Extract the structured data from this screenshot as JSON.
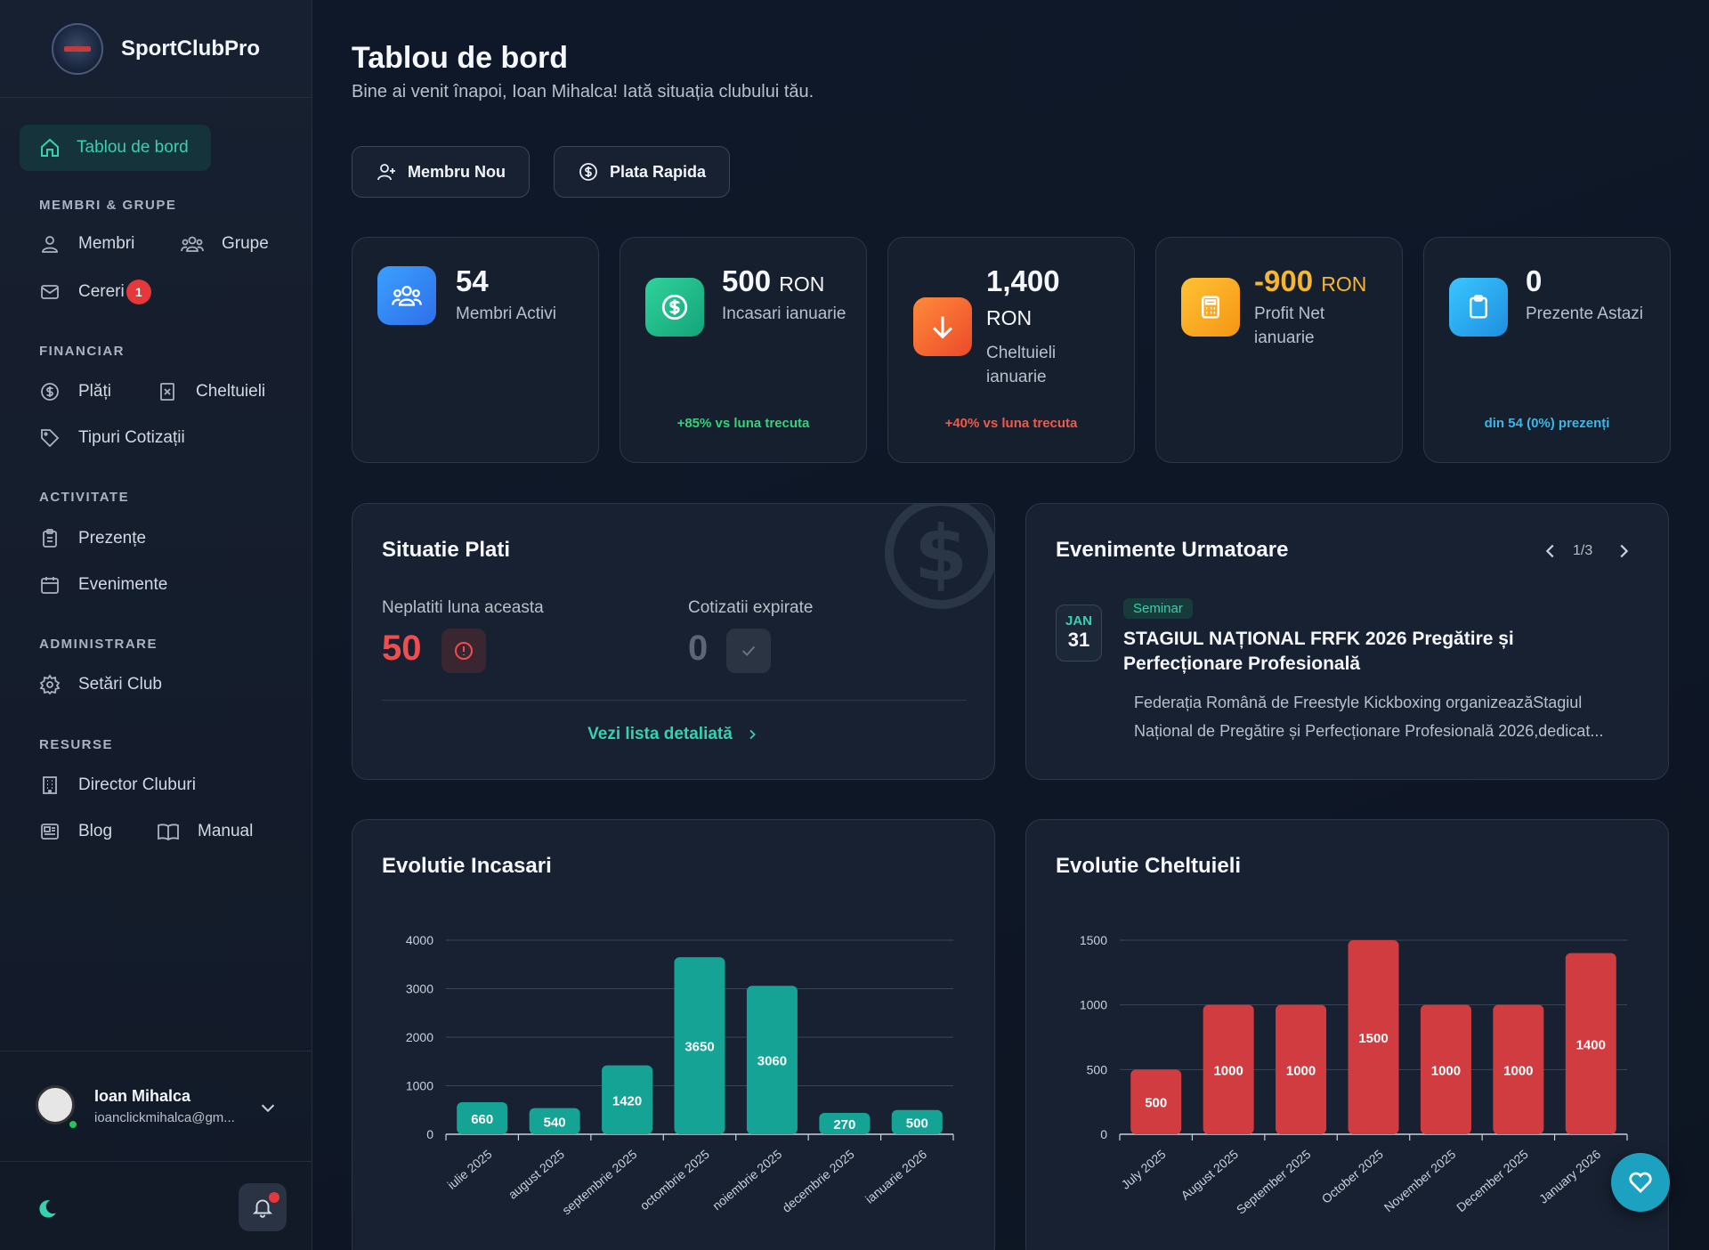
{
  "app": {
    "name": "SportClubPro"
  },
  "sidebar": {
    "active": "Tablou de bord",
    "sections": {
      "members": "MEMBRI & GRUPE",
      "financial": "FINANCIAR",
      "activity": "ACTIVITATE",
      "admin": "ADMINISTRARE",
      "resources": "RESURSE"
    },
    "items": {
      "membri": "Membri",
      "grupe": "Grupe",
      "cereri": "Cereri",
      "cereri_badge": "1",
      "plati": "Plăți",
      "cheltuieli": "Cheltuieli",
      "tipuri": "Tipuri Cotizații",
      "prezente": "Prezențe",
      "evenimente": "Evenimente",
      "setari": "Setări Club",
      "director": "Director Cluburi",
      "blog": "Blog",
      "manual": "Manual"
    },
    "user": {
      "name": "Ioan Mihalca",
      "email": "ioanclickmihalca@gm..."
    }
  },
  "header": {
    "title": "Tablou de bord",
    "subtitle": "Bine ai venit înapoi, Ioan Mihalca! Iată situația clubului tău."
  },
  "actions": {
    "new_member": "Membru Nou",
    "quick_pay": "Plata Rapida"
  },
  "stats": [
    {
      "value": "54",
      "unit": "",
      "label": "Membri Activi",
      "foot": ""
    },
    {
      "value": "500",
      "unit": "RON",
      "label": "Incasari ianuarie",
      "foot": "+85% vs luna trecuta"
    },
    {
      "value": "1,400",
      "unit": "RON",
      "label": "Cheltuieli ianuarie",
      "foot": "+40% vs luna trecuta"
    },
    {
      "value": "-900",
      "unit": "RON",
      "label": "Profit Net ianuarie",
      "foot": ""
    },
    {
      "value": "0",
      "unit": "",
      "label": "Prezente Astazi",
      "foot": "din 54 (0%) prezenți"
    }
  ],
  "colors": {
    "accent": "#34d2b0",
    "income_bar": "#14a394",
    "expense_bar": "#d13c40",
    "negative": "#f5b731",
    "danger": "#ef4e4e"
  },
  "payments": {
    "title": "Situatie Plati",
    "unpaid_label": "Neplatiti luna aceasta",
    "unpaid_value": "50",
    "expired_label": "Cotizatii expirate",
    "expired_value": "0",
    "link": "Vezi lista detaliată"
  },
  "events": {
    "title": "Evenimente Urmatoare",
    "pager": "1/3",
    "month": "JAN",
    "day": "31",
    "tag": "Seminar",
    "headline_1": "STAGIUL NAȚIONAL FRFK 2026 Pregătire și",
    "headline_2": "Perfecționare Profesională",
    "desc_1": "Federația Română de Freestyle Kickboxing organizeazăStagiul",
    "desc_2": "Național de Pregătire și Perfecționare Profesională 2026,dedicat..."
  },
  "chart_data": [
    {
      "type": "bar",
      "title": "Evolutie Incasari",
      "categories": [
        "iulie 2025",
        "august 2025",
        "septembrie 2025",
        "octombrie 2025",
        "noiembrie 2025",
        "decembrie 2025",
        "ianuarie 2026"
      ],
      "values": [
        660,
        540,
        1420,
        3650,
        3060,
        270,
        500
      ],
      "yticks": [
        0,
        1000,
        2000,
        3000,
        4000
      ],
      "ylim": [
        0,
        4000
      ],
      "grid": true
    },
    {
      "type": "bar",
      "title": "Evolutie Cheltuieli",
      "categories": [
        "July 2025",
        "August 2025",
        "September 2025",
        "October 2025",
        "November 2025",
        "December 2025",
        "January 2026"
      ],
      "values": [
        500,
        1000,
        1000,
        1500,
        1000,
        1000,
        1400
      ],
      "yticks": [
        0,
        500,
        1000,
        1500
      ],
      "ylim": [
        0,
        1500
      ],
      "grid": true
    }
  ]
}
